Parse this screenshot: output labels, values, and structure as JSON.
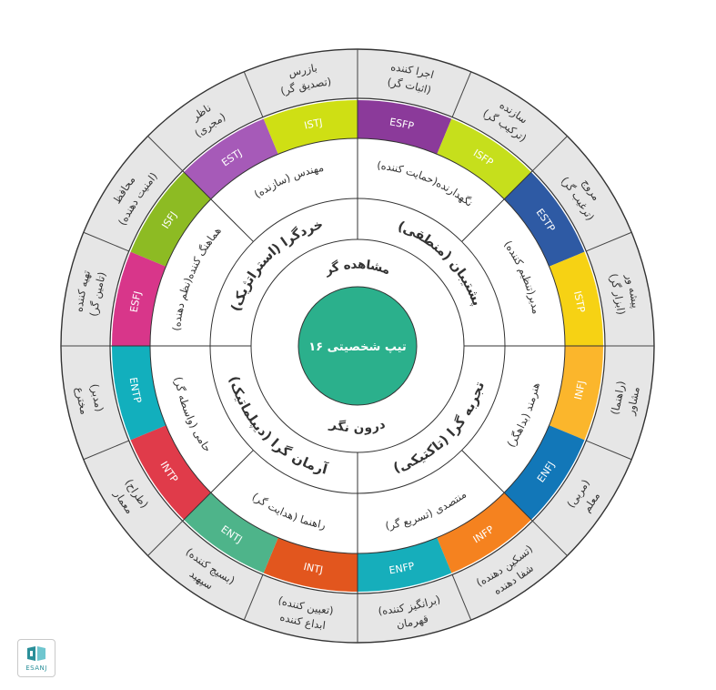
{
  "center": {
    "label": "۱۶ تیپ شخصیتی",
    "color": "#2bb08c"
  },
  "ring1": [
    {
      "label": "مشاهده گر"
    },
    {
      "label": "درون نگر"
    }
  ],
  "ring2": [
    {
      "label": "پشتیبان (منطقی)"
    },
    {
      "label": "تجربه گرا (تاکتیکی)"
    },
    {
      "label": "آرمان گرا (دیپلماتیک)"
    },
    {
      "label": "خردگرا (استراتژیک)"
    }
  ],
  "ring3": [
    {
      "label": "نگهدارنده(حمایت کننده)"
    },
    {
      "label": "مدیر(تنظیم کننده)"
    },
    {
      "label": "هنرمند (بداهگر)"
    },
    {
      "label": "منتصدی (تسریع گر)"
    },
    {
      "label": "راهنما (هدایت گر)"
    },
    {
      "label": "حامی (واسطه گر)"
    },
    {
      "label": "هماهنگ کننده(نظم دهنده)"
    },
    {
      "label": "مهندس (سازنده)"
    }
  ],
  "types": [
    {
      "code": "ESFP",
      "color": "#8b3a9a",
      "role1": "اجرا کننده",
      "role2": "(اثبات گر)"
    },
    {
      "code": "ISFP",
      "color": "#c6df1c",
      "role1": "سازنده",
      "role2": "(ترکیب گر)"
    },
    {
      "code": "ESTP",
      "color": "#2e5aa4",
      "role1": "مروج",
      "role2": "(ترغیب گر)"
    },
    {
      "code": "ISTP",
      "color": "#f6d214",
      "role1": "پیشه ور",
      "role2": "(ابزار گر)"
    },
    {
      "code": "INFJ",
      "color": "#fbb62c",
      "role1": "مشاور",
      "role2": "(راهنما)"
    },
    {
      "code": "ENFJ",
      "color": "#1277b8",
      "role1": "معلم",
      "role2": "(مربی)"
    },
    {
      "code": "INFP",
      "color": "#f5821f",
      "role1": "شفا دهنده",
      "role2": "(تسکین دهنده)"
    },
    {
      "code": "ENFP",
      "color": "#16aebb",
      "role1": "قهرمان",
      "role2": "(برانگیز کننده)"
    },
    {
      "code": "INTJ",
      "color": "#e2561e",
      "role1": "ابداع کننده",
      "role2": "(تعیین کننده)"
    },
    {
      "code": "ENTJ",
      "color": "#4eb48a",
      "role1": "سپهبد",
      "role2": "(بسیج کننده)"
    },
    {
      "code": "INTP",
      "color": "#e03b4a",
      "role1": "معمار",
      "role2": "(طراح)"
    },
    {
      "code": "ENTP",
      "color": "#12afbd",
      "role1": "مخترع",
      "role2": "(مدبر)"
    },
    {
      "code": "ESFJ",
      "color": "#d8368a",
      "role1": "تهیه کننده",
      "role2": "(تامین گر)"
    },
    {
      "code": "ISFJ",
      "color": "#8dbb23",
      "role1": "محافظ",
      "role2": "(امنیت دهنده)"
    },
    {
      "code": "ESTJ",
      "color": "#a65ab8",
      "role1": "ناظر",
      "role2": "(مجری)"
    },
    {
      "code": "ISTJ",
      "color": "#cfdf14",
      "role1": "بازرس",
      "role2": "(تصدیق گر)"
    }
  ],
  "logo": {
    "text": "ESANJ"
  }
}
